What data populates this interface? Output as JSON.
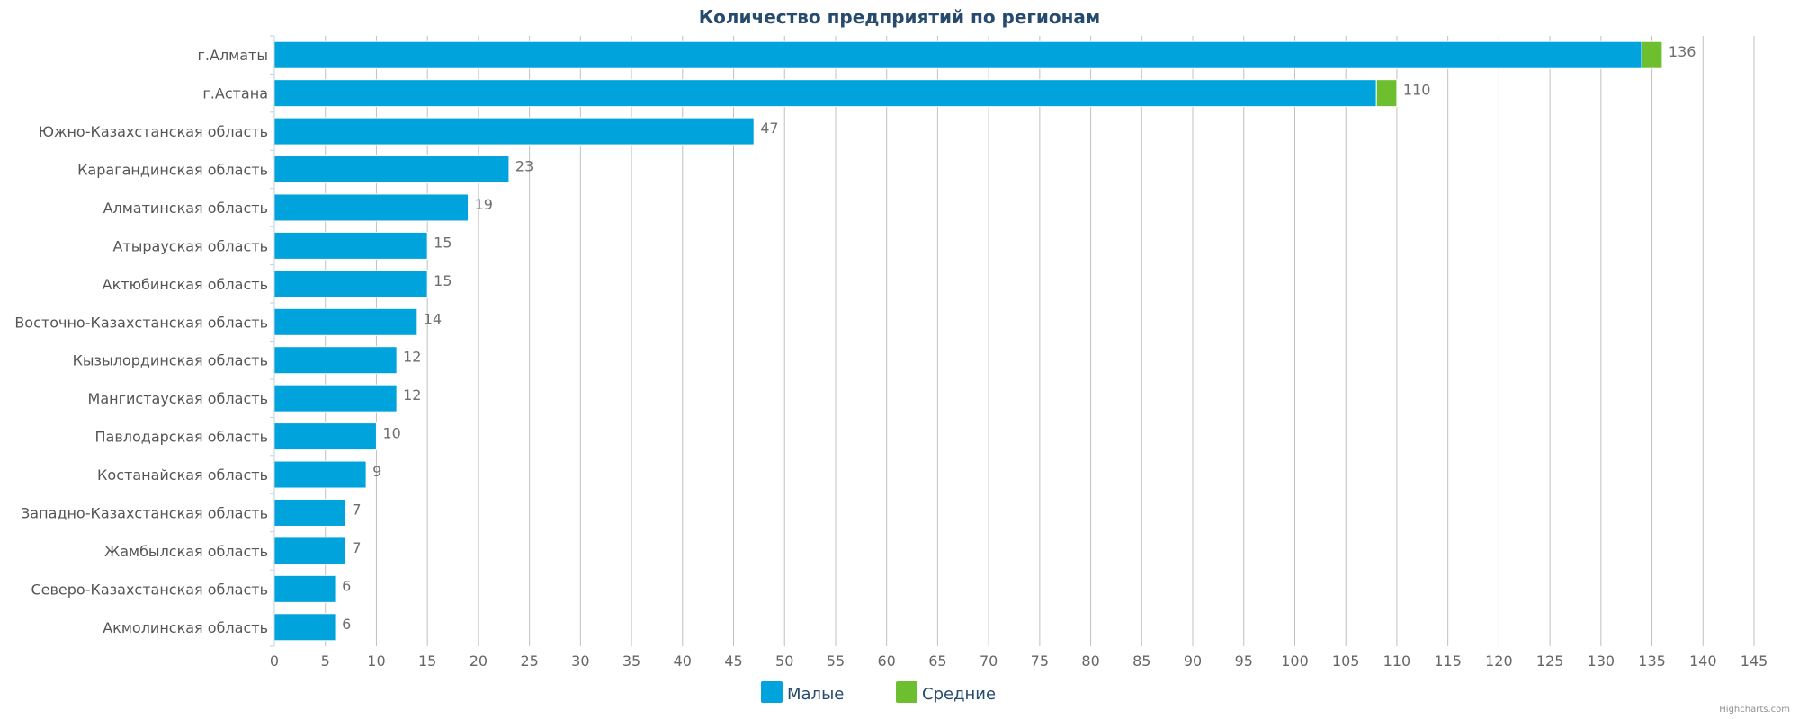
{
  "chart_data": {
    "type": "bar",
    "orientation": "horizontal",
    "stacked": true,
    "title": "Количество предприятий по регионам",
    "categories": [
      "г.Алматы",
      "г.Астана",
      "Южно-Казахстанская область",
      "Карагандинская область",
      "Алматинская область",
      "Атырауская область",
      "Актюбинская область",
      "Восточно-Казахстанская область",
      "Кызылординская область",
      "Мангистауская область",
      "Павлодарская область",
      "Костанайская область",
      "Западно-Казахстанская область",
      "Жамбылская область",
      "Северо-Казахстанская область",
      "Акмолинская область"
    ],
    "series": [
      {
        "name": "Малые",
        "color": "#00a3dc",
        "values": [
          134,
          108,
          47,
          23,
          19,
          15,
          15,
          14,
          12,
          12,
          10,
          9,
          7,
          7,
          6,
          6
        ]
      },
      {
        "name": "Средние",
        "color": "#6ebf2f",
        "values": [
          2,
          2,
          0,
          0,
          0,
          0,
          0,
          0,
          0,
          0,
          0,
          0,
          0,
          0,
          0,
          0
        ]
      }
    ],
    "totals": [
      136,
      110,
      47,
      23,
      19,
      15,
      15,
      14,
      12,
      12,
      10,
      9,
      7,
      7,
      6,
      6
    ],
    "xlim": [
      0,
      145
    ],
    "x_ticks": [
      0,
      5,
      10,
      15,
      20,
      25,
      30,
      35,
      40,
      45,
      50,
      55,
      60,
      65,
      70,
      75,
      80,
      85,
      90,
      95,
      100,
      105,
      110,
      115,
      120,
      125,
      130,
      135,
      140,
      145
    ],
    "grid": true,
    "legend": "bottom-center",
    "credit": "Highcharts.com"
  }
}
